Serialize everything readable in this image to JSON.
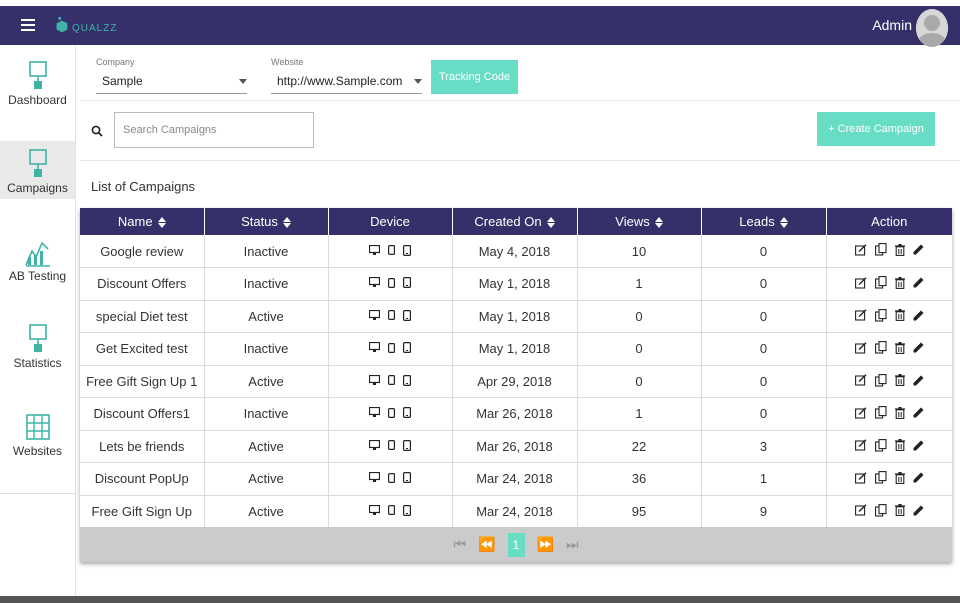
{
  "app": {
    "logo_text": "QUALZZ",
    "admin_name": "Admin"
  },
  "sidebar": {
    "items": [
      {
        "label": "Dashboard",
        "icon": "monitor-icon"
      },
      {
        "label": "Campaigns",
        "icon": "monitor-icon",
        "active": true
      },
      {
        "label": "AB Testing",
        "icon": "chart-icon"
      },
      {
        "label": "Statistics",
        "icon": "monitor-icon"
      },
      {
        "label": "Websites",
        "icon": "globe-grid-icon"
      }
    ]
  },
  "filters": {
    "company_label": "Company",
    "company_value": "Sample",
    "website_label": "Website",
    "website_value": "http://www.Sample.com",
    "tracking_button": "Tracking Code"
  },
  "search": {
    "placeholder": "Search Campaigns",
    "create_button": "+  Create Campaign"
  },
  "list_title": "List of Campaigns",
  "table": {
    "columns": [
      "Name",
      "Status",
      "Device",
      "Created On",
      "Views",
      "Leads",
      "Action"
    ],
    "rows": [
      {
        "name": "Google review",
        "status": "Inactive",
        "created": "May 4, 2018",
        "views": "10",
        "leads": "0"
      },
      {
        "name": "Discount Offers",
        "status": "Inactive",
        "created": "May 1, 2018",
        "views": "1",
        "leads": "0"
      },
      {
        "name": "special Diet test",
        "status": "Active",
        "created": "May 1, 2018",
        "views": "0",
        "leads": "0"
      },
      {
        "name": "Get Excited test",
        "status": "Inactive",
        "created": "May 1, 2018",
        "views": "0",
        "leads": "0"
      },
      {
        "name": "Free Gift Sign Up 1",
        "status": "Active",
        "created": "Apr 29, 2018",
        "views": "0",
        "leads": "0"
      },
      {
        "name": "Discount Offers1",
        "status": "Inactive",
        "created": "Mar 26, 2018",
        "views": "1",
        "leads": "0"
      },
      {
        "name": "Lets be friends",
        "status": "Active",
        "created": "Mar 26, 2018",
        "views": "22",
        "leads": "3"
      },
      {
        "name": "Discount PopUp",
        "status": "Active",
        "created": "Mar 24, 2018",
        "views": "36",
        "leads": "1"
      },
      {
        "name": "Free Gift Sign Up",
        "status": "Active",
        "created": "Mar 24, 2018",
        "views": "95",
        "leads": "9"
      }
    ]
  },
  "pagination": {
    "current_page": "1"
  },
  "colors": {
    "header": "#352f6a",
    "accent": "#67ddc6"
  }
}
